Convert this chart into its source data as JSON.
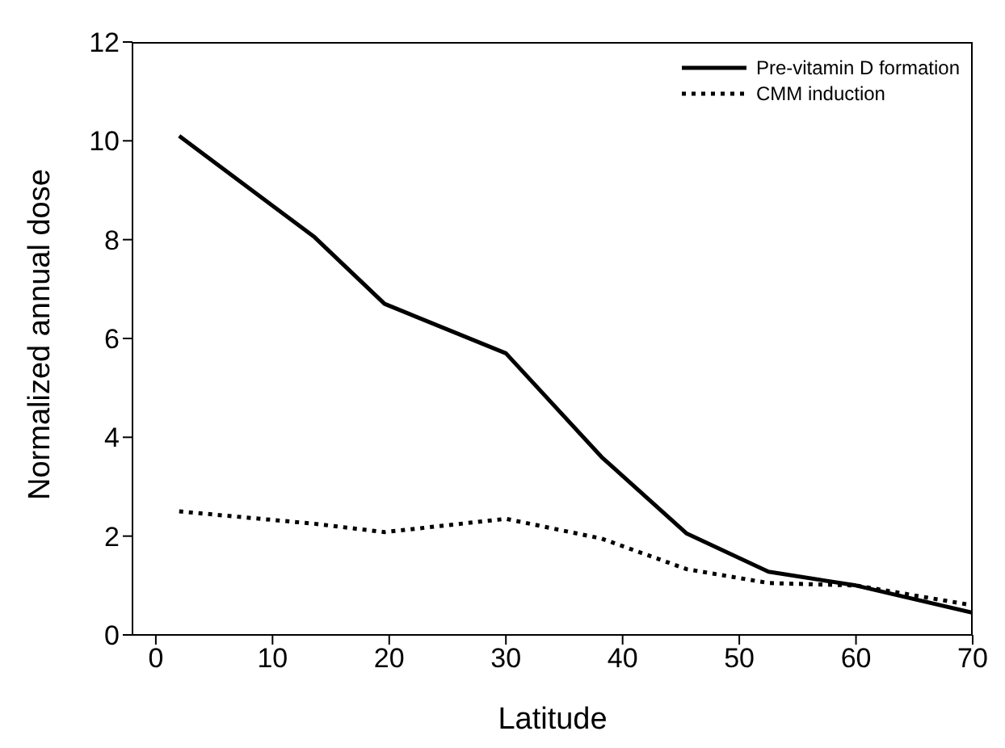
{
  "chart_data": {
    "type": "line",
    "xlabel": "Latitude",
    "ylabel": "Normalized annual dose",
    "x": [
      2,
      13.6,
      19.6,
      30,
      38.2,
      45.5,
      52.5,
      60,
      70
    ],
    "series": [
      {
        "name": "Pre-vitamin D formation",
        "color": "#000000",
        "line_style": "solid",
        "values": [
          10.1,
          8.05,
          6.7,
          5.7,
          3.6,
          2.05,
          1.28,
          1.0,
          0.45
        ]
      },
      {
        "name": "CMM induction",
        "color": "#000000",
        "line_style": "dotted",
        "values": [
          2.5,
          2.25,
          2.08,
          2.35,
          1.95,
          1.33,
          1.05,
          1.0,
          0.6
        ]
      }
    ],
    "xlim": [
      -2,
      70
    ],
    "xticks": [
      0,
      10,
      20,
      30,
      40,
      50,
      60,
      70
    ],
    "ylim": [
      0,
      12
    ],
    "yticks": [
      0,
      2,
      4,
      6,
      8,
      10,
      12
    ],
    "grid": false,
    "legend": "top right",
    "marker": "none"
  }
}
